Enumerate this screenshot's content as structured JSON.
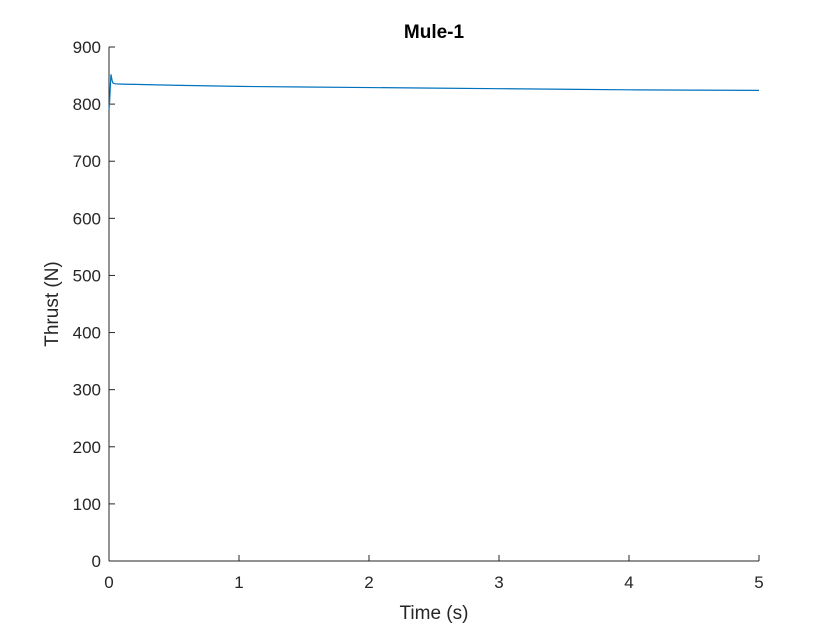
{
  "chart_data": {
    "type": "line",
    "title": "Mule-1",
    "xlabel": "Time (s)",
    "ylabel": "Thrust (N)",
    "xlim": [
      0,
      5
    ],
    "ylim": [
      0,
      900
    ],
    "xticks": [
      0,
      1,
      2,
      3,
      4,
      5
    ],
    "yticks": [
      0,
      100,
      200,
      300,
      400,
      500,
      600,
      700,
      800,
      900
    ],
    "grid": false,
    "legend": "none",
    "colors": {
      "series": "#0072BD",
      "axis": "#262626"
    },
    "series": [
      {
        "x": [
          0,
          0.005,
          0.01,
          0.015,
          0.02,
          0.025,
          0.03,
          0.04,
          0.05,
          0.06,
          0.08,
          0.1,
          0.2,
          0.5,
          1.0,
          1.5,
          2.0,
          2.5,
          3.0,
          3.5,
          4.0,
          4.5,
          5.0
        ],
        "values": [
          790,
          805,
          830,
          852,
          846,
          840,
          837,
          836,
          835.5,
          835.3,
          835.2,
          835.0,
          834.5,
          833,
          831,
          830,
          829,
          828,
          827,
          826,
          825,
          824.5,
          824
        ]
      }
    ]
  }
}
